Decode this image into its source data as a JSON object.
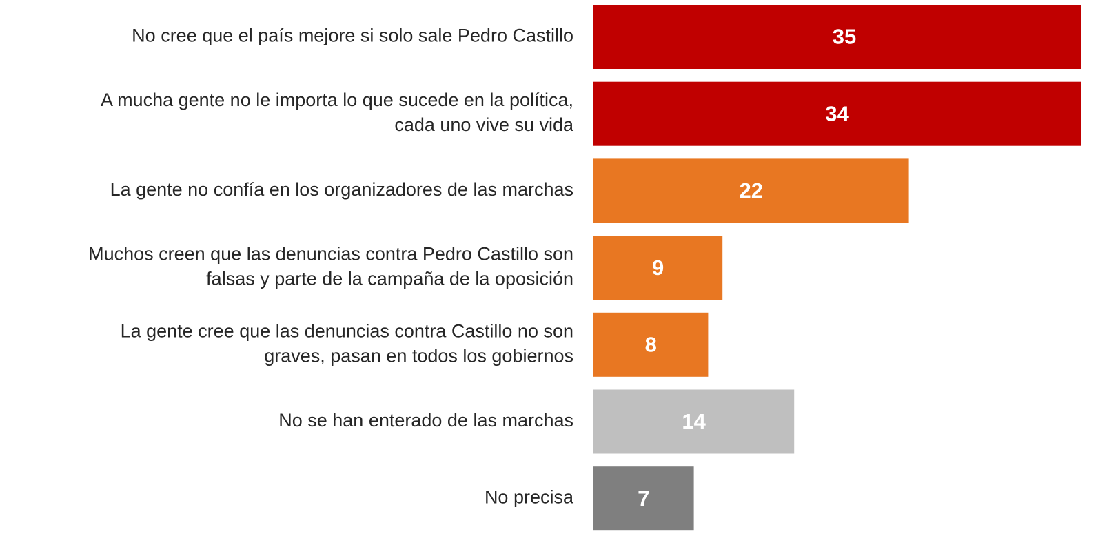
{
  "chart_data": {
    "type": "bar",
    "orientation": "horizontal",
    "categories": [
      "No cree que el país mejore si solo sale Pedro Castillo",
      "A mucha gente no le importa lo que sucede en la política,\ncada uno vive su vida",
      "La gente no confía en los organizadores de las marchas",
      "Muchos creen que las denuncias contra Pedro Castillo son\nfalsas y parte de la campaña de la oposición",
      "La gente cree que las denuncias contra Castillo no son\ngraves, pasan en todos los gobiernos",
      "No se han enterado de las marchas",
      "No precisa"
    ],
    "values": [
      35,
      34,
      22,
      9,
      8,
      14,
      7
    ],
    "colors": [
      "#c00000",
      "#c00000",
      "#e87722",
      "#e87722",
      "#e87722",
      "#bfbfbf",
      "#7f7f7f"
    ]
  }
}
